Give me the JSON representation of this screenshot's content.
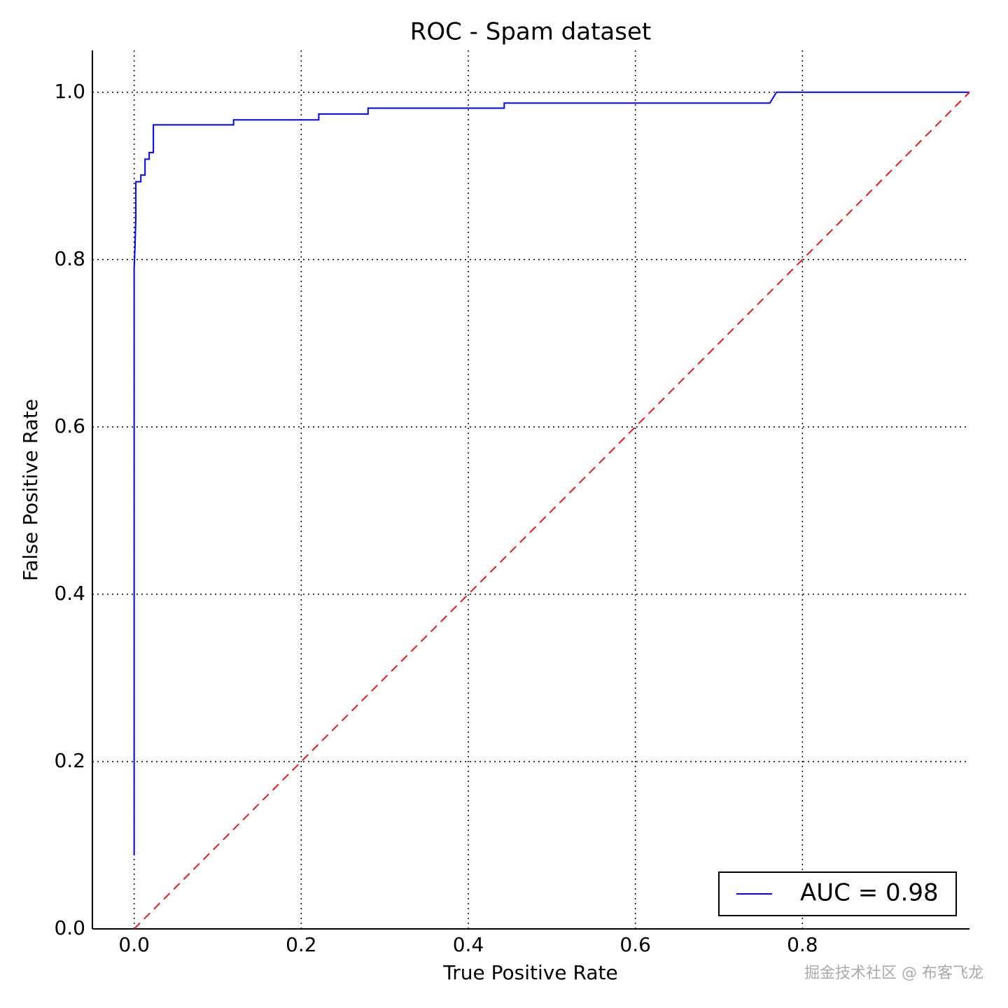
{
  "chart_data": {
    "type": "line",
    "title": "ROC - Spam dataset",
    "xlabel": "True Positive Rate",
    "ylabel": "False Positive Rate",
    "xlim": [
      -0.05,
      1.0
    ],
    "ylim": [
      0,
      1.05
    ],
    "xticks": [
      {
        "value": 0,
        "label": "0.0"
      },
      {
        "value": 0.2,
        "label": "0.2"
      },
      {
        "value": 0.4,
        "label": "0.4"
      },
      {
        "value": 0.6,
        "label": "0.6"
      },
      {
        "value": 0.8,
        "label": "0.8"
      }
    ],
    "yticks": [
      {
        "value": 0,
        "label": "0.0"
      },
      {
        "value": 0.2,
        "label": "0.2"
      },
      {
        "value": 0.4,
        "label": "0.4"
      },
      {
        "value": 0.6,
        "label": "0.6"
      },
      {
        "value": 0.8,
        "label": "0.8"
      },
      {
        "value": 1.0,
        "label": "1.0"
      }
    ],
    "grid": true,
    "legend": "lower right",
    "series": [
      {
        "name": "AUC = 0.98",
        "color": "#0000ff",
        "style": "solid",
        "x": [
          0,
          0,
          0.001,
          0.002,
          0.002,
          0.008,
          0.008,
          0.013,
          0.013,
          0.018,
          0.018,
          0.023,
          0.023,
          0.119,
          0.119,
          0.221,
          0.221,
          0.28,
          0.28,
          0.443,
          0.443,
          0.761,
          0.769,
          1.0
        ],
        "values": [
          0.088,
          0.79,
          0.815,
          0.85,
          0.893,
          0.893,
          0.901,
          0.901,
          0.92,
          0.92,
          0.928,
          0.928,
          0.961,
          0.961,
          0.967,
          0.967,
          0.974,
          0.974,
          0.981,
          0.981,
          0.987,
          0.987,
          1.0,
          1.0
        ]
      },
      {
        "color": "#e41a1c",
        "style": "dashed",
        "x": [
          0,
          1
        ],
        "values": [
          0,
          1
        ]
      }
    ],
    "watermark": "掘金技术社区 @ 布客飞龙"
  }
}
